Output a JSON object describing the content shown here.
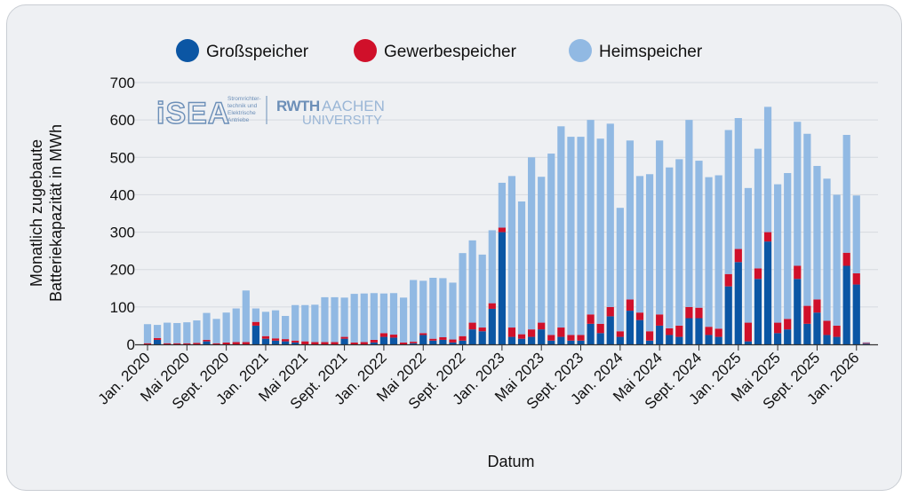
{
  "chart_data": {
    "type": "bar",
    "stacked": true,
    "title": "",
    "xlabel": "Datum",
    "ylabel": "Monatlich zugebaute Batteriekapazität in MWh",
    "ylim": [
      0,
      700
    ],
    "yticks": [
      0,
      100,
      200,
      300,
      400,
      500,
      600,
      700
    ],
    "grid": true,
    "legend_position": "top",
    "x_tick_labels": [
      {
        "index": 0,
        "label": "Jan. 2020"
      },
      {
        "index": 4,
        "label": "Mai 2020"
      },
      {
        "index": 8,
        "label": "Sept. 2020"
      },
      {
        "index": 12,
        "label": "Jan. 2021"
      },
      {
        "index": 16,
        "label": "Mai 2021"
      },
      {
        "index": 20,
        "label": "Sept. 2021"
      },
      {
        "index": 24,
        "label": "Jan. 2022"
      },
      {
        "index": 28,
        "label": "Mai 2022"
      },
      {
        "index": 32,
        "label": "Sept. 2022"
      },
      {
        "index": 36,
        "label": "Jan. 2023"
      },
      {
        "index": 40,
        "label": "Mai 2023"
      },
      {
        "index": 44,
        "label": "Sept. 2023"
      },
      {
        "index": 48,
        "label": "Jan. 2024"
      },
      {
        "index": 52,
        "label": "Mai 2024"
      },
      {
        "index": 56,
        "label": "Sept. 2024"
      },
      {
        "index": 60,
        "label": "Jan. 2025"
      },
      {
        "index": 64,
        "label": "Mai 2025"
      },
      {
        "index": 68,
        "label": "Sept. 2025"
      },
      {
        "index": 72,
        "label": "Jan. 2026"
      }
    ],
    "series": [
      {
        "name": "Großspeicher",
        "color": "#0b56a4",
        "values": [
          0,
          12,
          0,
          0,
          0,
          0,
          8,
          0,
          0,
          0,
          0,
          50,
          15,
          10,
          8,
          5,
          0,
          0,
          0,
          0,
          15,
          0,
          0,
          5,
          20,
          18,
          0,
          3,
          25,
          10,
          12,
          5,
          10,
          40,
          35,
          95,
          300,
          20,
          15,
          20,
          40,
          10,
          20,
          10,
          10,
          55,
          30,
          75,
          20,
          90,
          65,
          10,
          50,
          25,
          20,
          70,
          70,
          25,
          20,
          155,
          220,
          8,
          175,
          275,
          30,
          40,
          175,
          55,
          85,
          25,
          20,
          210,
          160,
          2
        ]
      },
      {
        "name": "Gewerbespeicher",
        "color": "#d0102a",
        "values": [
          3,
          5,
          3,
          3,
          3,
          4,
          4,
          3,
          5,
          6,
          6,
          10,
          7,
          6,
          6,
          5,
          8,
          6,
          6,
          6,
          5,
          5,
          6,
          7,
          10,
          8,
          5,
          4,
          5,
          5,
          7,
          8,
          12,
          18,
          10,
          15,
          12,
          25,
          12,
          20,
          18,
          15,
          25,
          15,
          15,
          25,
          25,
          25,
          15,
          30,
          20,
          25,
          30,
          18,
          30,
          30,
          28,
          22,
          22,
          33,
          35,
          50,
          28,
          25,
          28,
          28,
          35,
          48,
          35,
          38,
          30,
          35,
          30,
          2
        ]
      },
      {
        "name": "Heimspeicher",
        "color": "#91b9e3",
        "values": [
          51,
          35,
          55,
          54,
          56,
          60,
          72,
          65,
          80,
          90,
          138,
          36,
          65,
          75,
          62,
          95,
          97,
          100,
          120,
          120,
          105,
          130,
          130,
          125,
          106,
          111,
          120,
          165,
          140,
          163,
          158,
          152,
          222,
          220,
          195,
          195,
          120,
          405,
          355,
          460,
          390,
          485,
          538,
          530,
          530,
          520,
          495,
          490,
          330,
          425,
          365,
          420,
          465,
          430,
          445,
          500,
          393,
          400,
          410,
          385,
          350,
          360,
          320,
          335,
          370,
          390,
          385,
          460,
          357,
          380,
          350,
          315,
          208,
          2
        ]
      }
    ]
  }
}
